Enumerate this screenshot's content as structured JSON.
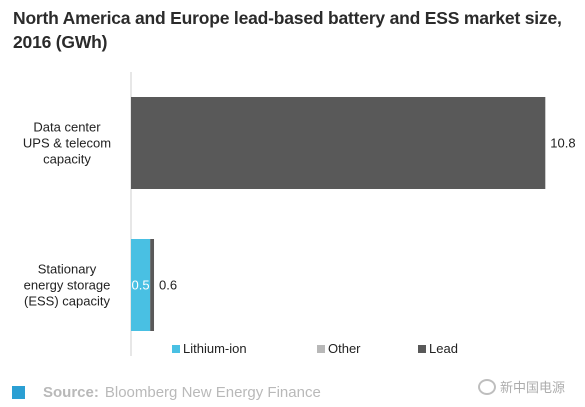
{
  "title": "North America and Europe lead-based battery and ESS market size, 2016 (GWh)",
  "chart_data": {
    "type": "bar",
    "orientation": "horizontal",
    "stacked": true,
    "title": "North America and Europe lead-based battery and ESS market size, 2016 (GWh)",
    "categories": [
      [
        "Data center",
        "UPS & telecom",
        "capacity"
      ],
      [
        "Stationary",
        "energy storage",
        "(ESS) capacity"
      ]
    ],
    "series": [
      {
        "name": "Lithium-ion",
        "color": "#49c0e3",
        "values": [
          0,
          0.5
        ]
      },
      {
        "name": "Other",
        "color": "#b8b8b8",
        "values": [
          0,
          0
        ]
      },
      {
        "name": "Lead",
        "color": "#595959",
        "values": [
          10.8,
          0.1
        ]
      }
    ],
    "segment_labels": [
      [
        null,
        null,
        null
      ],
      [
        "0.5",
        null,
        null
      ]
    ],
    "total_labels": [
      "10.8",
      "0.6"
    ],
    "xlim": [
      0,
      11.6
    ],
    "grid": false,
    "legend_position": "bottom"
  },
  "source": {
    "prefix": "Source:",
    "text": "Bloomberg New Energy Finance"
  },
  "watermark": {
    "text": "新中国电源"
  }
}
